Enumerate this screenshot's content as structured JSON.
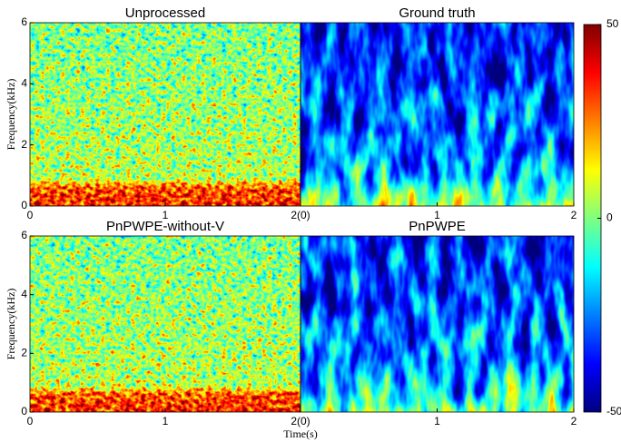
{
  "chart_data": [
    {
      "type": "heatmap",
      "title": "Unprocessed",
      "ylabel": "Frequency(kHz)",
      "xlim": [
        0,
        2
      ],
      "xticks": [
        0,
        1,
        {
          "value": 2,
          "label": "2(0)"
        }
      ],
      "ylim": [
        0,
        6
      ],
      "yticks": [
        0,
        2,
        4,
        6
      ]
    },
    {
      "type": "heatmap",
      "title": "Ground truth",
      "xlim": [
        0,
        2
      ],
      "xticks": [
        1,
        2
      ],
      "ylim": [
        0,
        6
      ]
    },
    {
      "type": "heatmap",
      "title": "PnPWPE-without-V",
      "ylabel": "Frequency(kHz)",
      "xlabel": "Time(s)",
      "xlim": [
        0,
        2
      ],
      "xticks": [
        0,
        1,
        {
          "value": 2,
          "label": "2(0)"
        }
      ],
      "ylim": [
        0,
        6
      ],
      "yticks": [
        0,
        2,
        4,
        6
      ]
    },
    {
      "type": "heatmap",
      "title": "PnPWPE",
      "xlim": [
        0,
        2
      ],
      "xticks": [
        1,
        2
      ],
      "ylim": [
        0,
        6
      ]
    },
    {
      "type": "colorbar",
      "colormap": "jet",
      "ylim": [
        -50,
        50
      ],
      "yticks": [
        -50,
        0,
        50
      ]
    }
  ]
}
